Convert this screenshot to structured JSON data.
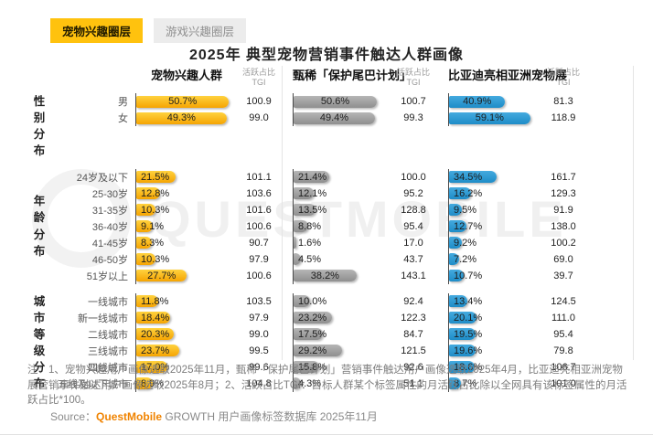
{
  "tabs": [
    {
      "label": "宠物兴趣圈层",
      "active": true
    },
    {
      "label": "游戏兴趣圈层",
      "active": false
    }
  ],
  "accent_color": "#FFC20E",
  "title": "2025年 典型宠物营销事件触达人群画像",
  "watermark": "QUESTMOBILE",
  "chart_data": {
    "type": "bar",
    "unit": "%",
    "metric_label": "活跃占比",
    "tgi_label": "TGI",
    "groups": [
      {
        "label": "性别分布",
        "categories": [
          "男",
          "女"
        ]
      },
      {
        "label": "年龄分布",
        "categories": [
          "24岁及以下",
          "25-30岁",
          "31-35岁",
          "36-40岁",
          "41-45岁",
          "46-50岁",
          "51岁以上"
        ]
      },
      {
        "label": "城市等级分布",
        "categories": [
          "一线城市",
          "新一线城市",
          "二线城市",
          "三线城市",
          "四线城市",
          "五线及以下城市"
        ]
      }
    ],
    "series": [
      {
        "name": "宠物兴趣人群",
        "color": "#F5A402",
        "color_light": "#FFD23F",
        "share": [
          [
            50.7,
            49.3
          ],
          [
            21.5,
            12.8,
            10.3,
            9.1,
            8.3,
            10.3,
            27.7
          ],
          [
            11.8,
            18.4,
            20.3,
            23.7,
            17.0,
            8.9
          ]
        ],
        "tgi": [
          [
            100.9,
            99.0
          ],
          [
            101.1,
            103.6,
            101.6,
            100.6,
            90.7,
            97.9,
            100.6
          ],
          [
            103.5,
            97.9,
            99.0,
            99.5,
            99.6,
            104.8
          ]
        ]
      },
      {
        "name": "甄稀「保护尾巴计划」",
        "color": "#8F8F8F",
        "color_light": "#B5B5B5",
        "share": [
          [
            50.6,
            49.4
          ],
          [
            21.4,
            12.1,
            13.5,
            8.8,
            1.6,
            4.5,
            38.2
          ],
          [
            10.0,
            23.2,
            17.5,
            29.2,
            15.8,
            4.3
          ]
        ],
        "tgi": [
          [
            100.7,
            99.3
          ],
          [
            100.0,
            95.2,
            128.8,
            95.4,
            17.0,
            43.7,
            143.1
          ],
          [
            92.4,
            122.3,
            84.7,
            121.5,
            92.6,
            51.1
          ]
        ]
      },
      {
        "name": "比亚迪亮相亚洲宠物展",
        "color": "#1E8CC7",
        "color_light": "#44AADF",
        "share": [
          [
            40.9,
            59.1
          ],
          [
            34.5,
            16.2,
            9.5,
            12.7,
            9.2,
            7.2,
            10.7
          ],
          [
            13.4,
            20.1,
            19.5,
            19.6,
            18.6,
            8.7
          ]
        ],
        "tgi": [
          [
            81.3,
            118.9
          ],
          [
            161.7,
            129.3,
            91.9,
            138.0,
            100.2,
            69.0,
            39.7
          ],
          [
            124.5,
            111.0,
            95.4,
            79.8,
            106.7,
            101.0
          ]
        ]
      }
    ]
  },
  "note": "注：1、宠物兴趣用户画像选取2025年11月，甄稀「保护尾巴计划」营销事件触达用户画像选取2025年4月，比亚迪亮相亚洲宠物展营销事件触达用户画像选取2025年8月；2、活跃占比TGI：目标人群某个标签属性的月活跃占比除以全网具有该标签属性的月活跃占比*100。",
  "source": {
    "prefix": "Source：",
    "brand": "QuestMobile",
    "suffix": " GROWTH 用户画像标签数据库 2025年11月",
    "brand_color": "#F08300"
  }
}
